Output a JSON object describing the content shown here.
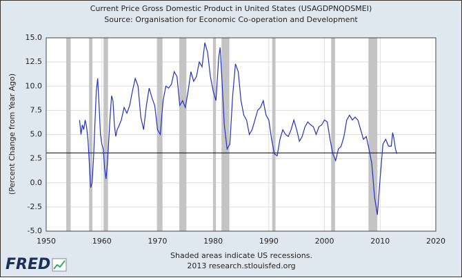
{
  "chart_data": {
    "type": "line",
    "title": "Current Price Gross Domestic Product in United States (USAGDPNQDSMEI)",
    "subtitle": "Source: Organisation for Economic Co-operation and Development",
    "y_label": "(Percent Change from Year Ago)",
    "notes": [
      "Shaded areas indicate US recessions.",
      "2013 research.stlouisfed.org"
    ],
    "logo": "FRED",
    "color": "#1f2fd0",
    "grid": true,
    "hline": 3.1,
    "recessions": [
      [
        1953.6,
        1954.4
      ],
      [
        1957.7,
        1958.3
      ],
      [
        1960.3,
        1961.1
      ],
      [
        1969.9,
        1970.9
      ],
      [
        1973.9,
        1975.2
      ],
      [
        1980.0,
        1980.5
      ],
      [
        1981.5,
        1982.9
      ],
      [
        1990.6,
        1991.2
      ],
      [
        2001.2,
        2001.9
      ],
      [
        2007.9,
        2009.5
      ]
    ],
    "xlim": [
      1950,
      2020
    ],
    "xticks": [
      1950,
      1960,
      1970,
      1980,
      1990,
      2000,
      2010,
      2020
    ],
    "ylim": [
      -5,
      15
    ],
    "yticks": [
      {
        "value": -5,
        "label": "-5.0"
      },
      -2.5,
      {
        "value": 0,
        "label": "0.0"
      },
      2.5,
      {
        "value": 5,
        "label": "5.0"
      },
      7.5,
      {
        "value": 10,
        "label": "10.0"
      },
      12.5,
      {
        "value": 15,
        "label": "15.0"
      }
    ],
    "x": [
      1956.0,
      1956.25,
      1956.5,
      1956.75,
      1957.0,
      1957.25,
      1957.5,
      1957.75,
      1958.0,
      1958.25,
      1958.5,
      1958.75,
      1959.0,
      1959.25,
      1959.5,
      1959.75,
      1960.0,
      1960.25,
      1960.5,
      1960.75,
      1961.0,
      1961.25,
      1961.5,
      1961.75,
      1962.0,
      1962.25,
      1962.5,
      1962.75,
      1963.0,
      1963.5,
      1964.0,
      1964.5,
      1965.0,
      1965.5,
      1966.0,
      1966.5,
      1967.0,
      1967.5,
      1968.0,
      1968.5,
      1969.0,
      1969.5,
      1970.0,
      1970.5,
      1971.0,
      1971.5,
      1972.0,
      1972.5,
      1973.0,
      1973.5,
      1974.0,
      1974.5,
      1975.0,
      1975.5,
      1976.0,
      1976.5,
      1977.0,
      1977.5,
      1978.0,
      1978.5,
      1979.0,
      1979.5,
      1980.0,
      1980.5,
      1981.0,
      1981.25,
      1981.5,
      1982.0,
      1982.5,
      1983.0,
      1983.5,
      1984.0,
      1984.5,
      1985.0,
      1985.5,
      1986.0,
      1986.5,
      1987.0,
      1987.5,
      1988.0,
      1988.5,
      1989.0,
      1989.5,
      1990.0,
      1990.5,
      1991.0,
      1991.5,
      1992.0,
      1992.5,
      1993.0,
      1993.5,
      1994.0,
      1994.5,
      1995.0,
      1995.5,
      1996.0,
      1996.5,
      1997.0,
      1997.5,
      1998.0,
      1998.5,
      1999.0,
      1999.5,
      2000.0,
      2000.5,
      2001.0,
      2001.5,
      2002.0,
      2002.5,
      2003.0,
      2003.5,
      2004.0,
      2004.5,
      2005.0,
      2005.5,
      2006.0,
      2006.5,
      2007.0,
      2007.5,
      2008.0,
      2008.5,
      2009.0,
      2009.5,
      2010.0,
      2010.5,
      2011.0,
      2011.5,
      2012.0,
      2012.25,
      2012.5,
      2012.75,
      2013.0
    ],
    "values": [
      6.5,
      5.0,
      6.0,
      5.5,
      6.5,
      5.8,
      4.5,
      2.0,
      -0.5,
      0.0,
      2.5,
      6.0,
      9.5,
      10.8,
      8.0,
      5.0,
      4.0,
      3.5,
      1.5,
      0.4,
      2.0,
      4.5,
      7.0,
      9.0,
      8.5,
      6.0,
      4.8,
      5.5,
      5.8,
      6.5,
      7.8,
      7.2,
      8.0,
      9.5,
      10.8,
      10.0,
      6.8,
      5.5,
      8.0,
      9.8,
      8.8,
      8.0,
      5.5,
      5.0,
      8.5,
      10.0,
      9.8,
      10.2,
      11.5,
      11.0,
      8.0,
      8.5,
      7.8,
      9.5,
      11.5,
      10.5,
      11.0,
      12.5,
      12.0,
      14.5,
      13.5,
      11.0,
      9.5,
      8.5,
      13.0,
      14.0,
      11.5,
      6.0,
      3.5,
      4.0,
      9.0,
      12.3,
      11.5,
      8.5,
      7.0,
      6.5,
      5.0,
      5.5,
      6.5,
      7.5,
      7.8,
      8.5,
      7.0,
      6.5,
      4.5,
      3.0,
      2.8,
      4.5,
      5.5,
      5.0,
      4.8,
      5.5,
      6.5,
      5.5,
      4.3,
      4.8,
      5.8,
      6.3,
      6.0,
      5.8,
      5.0,
      5.8,
      6.0,
      6.5,
      6.3,
      4.5,
      3.0,
      2.3,
      3.5,
      3.8,
      4.8,
      6.5,
      7.0,
      6.5,
      6.8,
      6.5,
      5.5,
      4.5,
      4.8,
      3.5,
      2.0,
      -1.5,
      -3.3,
      0.5,
      4.0,
      4.5,
      3.8,
      3.8,
      5.2,
      4.5,
      3.5,
      3.0
    ]
  }
}
